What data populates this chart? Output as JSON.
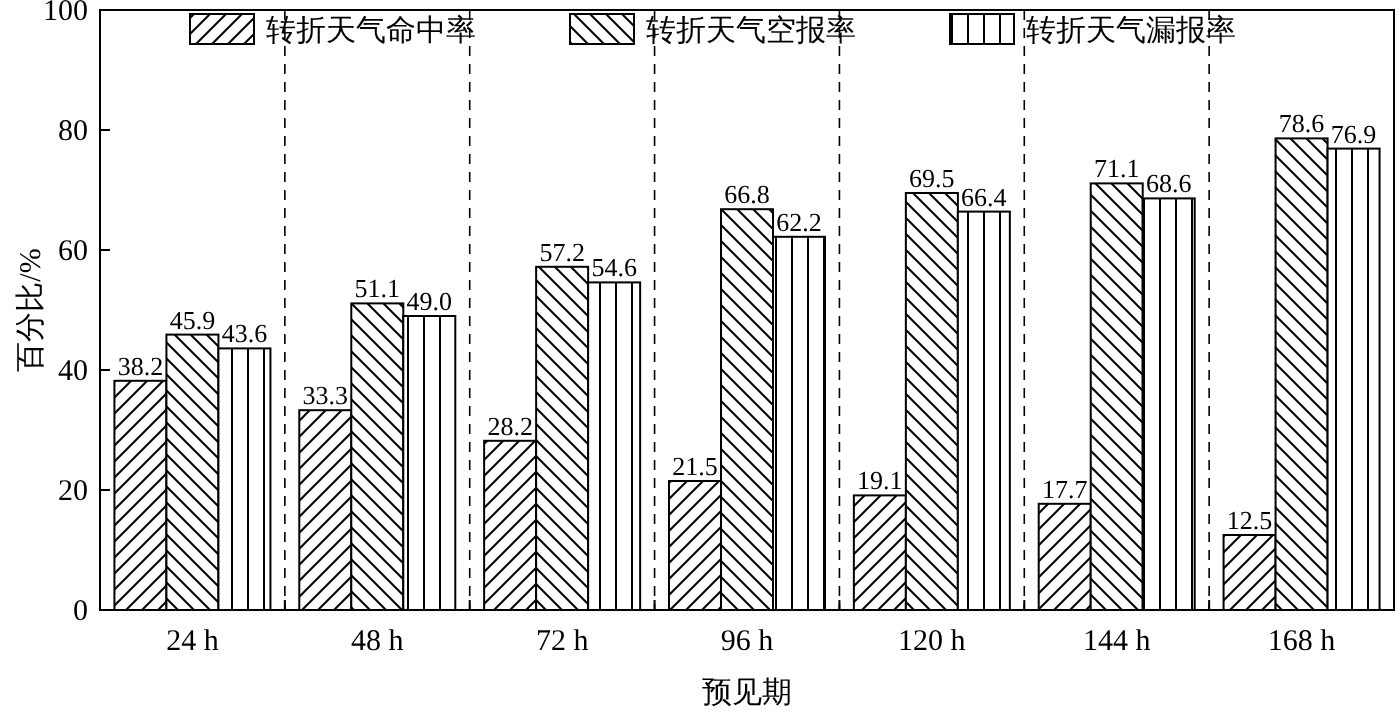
{
  "chart_data": {
    "type": "bar",
    "xlabel": "预见期",
    "ylabel": "百分比/%",
    "categories": [
      "24 h",
      "48 h",
      "72 h",
      "96 h",
      "120 h",
      "144 h",
      "168 h"
    ],
    "series": [
      {
        "name": "转折天气命中率",
        "color": "#000000",
        "values": [
          38.2,
          33.3,
          28.2,
          21.5,
          19.1,
          17.7,
          12.5
        ],
        "value_labels": [
          "38.2",
          "33.3",
          "28.2",
          "21.5",
          "19.1",
          "17.7",
          "12.5"
        ]
      },
      {
        "name": "转折天气空报率",
        "color": "#000000",
        "values": [
          45.9,
          51.1,
          57.2,
          66.8,
          69.5,
          71.1,
          78.6
        ],
        "value_labels": [
          "45.9",
          "51.1",
          "57.2",
          "66.8",
          "69.5",
          "71.1",
          "78.6"
        ]
      },
      {
        "name": "转折天气漏报率",
        "color": "#000000",
        "values": [
          43.6,
          49.0,
          54.6,
          62.2,
          66.4,
          68.6,
          76.9
        ],
        "value_labels": [
          "43.6",
          "49.0",
          "54.6",
          "62.2",
          "66.4",
          "68.6",
          "76.9"
        ]
      }
    ],
    "ylim": [
      0,
      100
    ],
    "yticks": [
      0,
      20,
      40,
      60,
      80,
      100
    ],
    "grid": "x",
    "legend": "top"
  }
}
